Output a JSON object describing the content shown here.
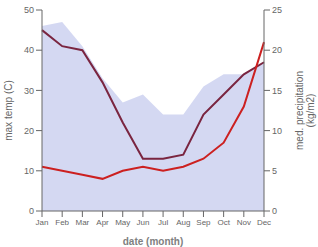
{
  "chart_data": {
    "type": "line",
    "categories": [
      "Jan",
      "Feb",
      "Mar",
      "Apr",
      "May",
      "Jun",
      "Jul",
      "Aug",
      "Sep",
      "Oct",
      "Nov",
      "Dec"
    ],
    "xlabel": "date (month)",
    "ylabel": "max temp (C)",
    "y2label": "med. precipitation\n(kg/m2)",
    "series": [
      {
        "type": "area",
        "color": "#b0b8e8",
        "values": [
          46,
          47,
          41,
          33,
          27,
          29,
          24,
          24,
          31,
          34,
          34,
          37
        ]
      },
      {
        "type": "line",
        "color": "#7a2540",
        "values": [
          45,
          41,
          40,
          32,
          22,
          13,
          13,
          14,
          24,
          29,
          34,
          37
        ]
      },
      {
        "type": "line",
        "color": "#cc2020",
        "axis": "y2",
        "values": [
          5.5,
          5.0,
          4.5,
          4.0,
          5.0,
          5.5,
          5.0,
          5.5,
          6.5,
          8.5,
          13.0,
          21.0
        ]
      }
    ],
    "ylim": [
      0,
      50
    ],
    "yticks": [
      0,
      10,
      20,
      30,
      40,
      50
    ],
    "y2lim": [
      0,
      25
    ],
    "y2ticks": [
      0,
      5,
      10,
      15,
      20,
      25
    ],
    "grid": false
  }
}
